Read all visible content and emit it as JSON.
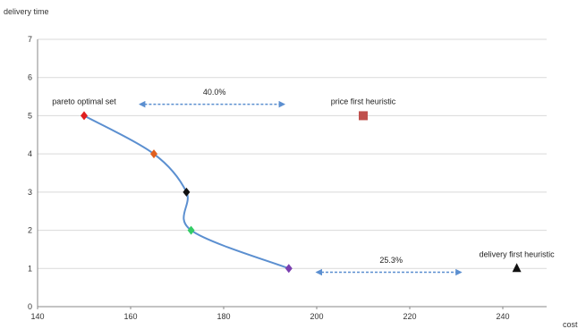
{
  "chart_data": {
    "type": "scatter",
    "title": "",
    "xlabel": "cost",
    "ylabel": "delivery time",
    "xlim": [
      140,
      250
    ],
    "ylim": [
      0,
      7
    ],
    "x_ticks": [
      140,
      160,
      180,
      200,
      220,
      240
    ],
    "y_ticks": [
      0,
      1,
      2,
      3,
      4,
      5,
      6,
      7
    ],
    "grid": "horizontal",
    "series": [
      {
        "name": "pareto optimal set",
        "points": [
          {
            "x": 150,
            "y": 5,
            "color": "#e02020",
            "marker": "diamond"
          },
          {
            "x": 165,
            "y": 4,
            "color": "#e06020",
            "marker": "diamond"
          },
          {
            "x": 172,
            "y": 3,
            "color": "#111111",
            "marker": "diamond"
          },
          {
            "x": 173,
            "y": 2,
            "color": "#33cc66",
            "marker": "diamond"
          },
          {
            "x": 194,
            "y": 1,
            "color": "#7a3fb0",
            "marker": "diamond"
          }
        ],
        "line_color": "#5b8fd0"
      },
      {
        "name": "price first heuristic",
        "points": [
          {
            "x": 210,
            "y": 5,
            "color": "#c0504d",
            "marker": "square"
          }
        ]
      },
      {
        "name": "delivery first heuristic",
        "points": [
          {
            "x": 243,
            "y": 1,
            "color": "#111111",
            "marker": "triangle"
          }
        ]
      }
    ],
    "annotations": [
      {
        "text": "40.0%",
        "arrow_from": [
          162,
          5.3
        ],
        "arrow_to": [
          193,
          5.3
        ],
        "label_at": [
          178,
          5.55
        ]
      },
      {
        "text": "25.3%",
        "arrow_from": [
          200,
          0.9
        ],
        "arrow_to": [
          231,
          0.9
        ],
        "label_at": [
          216,
          1.15
        ]
      }
    ],
    "series_labels": [
      {
        "text": "pareto optimal set",
        "at": [
          150,
          5.3
        ]
      },
      {
        "text": "price first heuristic",
        "at": [
          210,
          5.3
        ]
      },
      {
        "text": "delivery first heuristic",
        "at": [
          243,
          1.3
        ]
      }
    ],
    "colors": {
      "grid": "#d9d9d9",
      "arrow": "#5b8fd0",
      "axis": "#888888"
    }
  }
}
